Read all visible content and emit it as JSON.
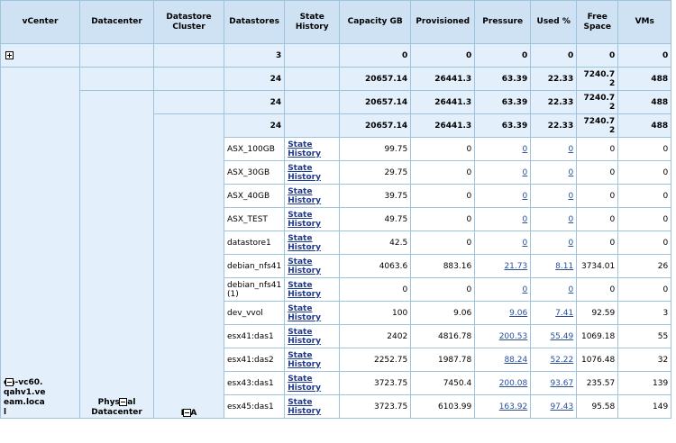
{
  "columns": [
    "vCenter",
    "Datacenter",
    "Datastore Cluster",
    "Datastores",
    "State History",
    "Capacity GB",
    "Provisioned",
    "Pressure",
    "Used %",
    "Free Space",
    "VMs"
  ],
  "rows": {
    "collapsed": {
      "datastores": "3",
      "capacity": "0",
      "provisioned": "0",
      "pressure": "0",
      "used": "0",
      "free": "0",
      "vms": "0"
    },
    "vcenter_total": {
      "datastores": "24",
      "capacity": "20657.14",
      "provisioned": "26441.3",
      "pressure": "63.39",
      "used": "22.33",
      "free": "7240.72",
      "vms": "488"
    },
    "datacenter_total": {
      "datastores": "24",
      "capacity": "20657.14",
      "provisioned": "26441.3",
      "pressure": "63.39",
      "used": "22.33",
      "free": "7240.72",
      "vms": "488"
    },
    "cluster_total": {
      "datastores": "24",
      "capacity": "20657.14",
      "provisioned": "26441.3",
      "pressure": "63.39",
      "used": "22.33",
      "free": "7240.72",
      "vms": "488"
    }
  },
  "group": {
    "vcenter": "qa-vc60.qahv1.veeam.local",
    "datacenter": "Physical Datacenter",
    "cluster": "N/A"
  },
  "state_history_label": "State History",
  "datastores": [
    {
      "name": "ASX_100GB",
      "capacity": "99.75",
      "provisioned": "0",
      "pressure": "0",
      "used": "0",
      "free": "0",
      "vms": "0"
    },
    {
      "name": "ASX_30GB",
      "capacity": "29.75",
      "provisioned": "0",
      "pressure": "0",
      "used": "0",
      "free": "0",
      "vms": "0"
    },
    {
      "name": "ASX_40GB",
      "capacity": "39.75",
      "provisioned": "0",
      "pressure": "0",
      "used": "0",
      "free": "0",
      "vms": "0"
    },
    {
      "name": "ASX_TEST",
      "capacity": "49.75",
      "provisioned": "0",
      "pressure": "0",
      "used": "0",
      "free": "0",
      "vms": "0"
    },
    {
      "name": "datastore1",
      "capacity": "42.5",
      "provisioned": "0",
      "pressure": "0",
      "used": "0",
      "free": "0",
      "vms": "0"
    },
    {
      "name": "debian_nfs41",
      "capacity": "4063.6",
      "provisioned": "883.16",
      "pressure": "21.73",
      "used": "8.11",
      "free": "3734.01",
      "vms": "26"
    },
    {
      "name": "debian_nfs41 (1)",
      "capacity": "0",
      "provisioned": "0",
      "pressure": "0",
      "used": "0",
      "free": "0",
      "vms": "0"
    },
    {
      "name": "dev_vvol",
      "capacity": "100",
      "provisioned": "9.06",
      "pressure": "9.06",
      "used": "7.41",
      "free": "92.59",
      "vms": "3"
    },
    {
      "name": "esx41:das1",
      "capacity": "2402",
      "provisioned": "4816.78",
      "pressure": "200.53",
      "used": "55.49",
      "free": "1069.18",
      "vms": "55"
    },
    {
      "name": "esx41:das2",
      "capacity": "2252.75",
      "provisioned": "1987.78",
      "pressure": "88.24",
      "used": "52.22",
      "free": "1076.48",
      "vms": "32"
    },
    {
      "name": "esx43:das1",
      "capacity": "3723.75",
      "provisioned": "7450.4",
      "pressure": "200.08",
      "used": "93.67",
      "free": "235.57",
      "vms": "139"
    },
    {
      "name": "esx45:das1",
      "capacity": "3723.75",
      "provisioned": "6103.99",
      "pressure": "163.92",
      "used": "97.43",
      "free": "95.58",
      "vms": "149"
    }
  ]
}
